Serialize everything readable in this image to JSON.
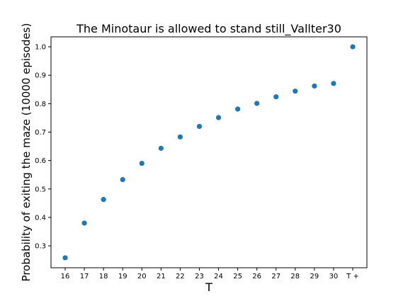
{
  "chart_data": {
    "type": "scatter",
    "title": "The Minotaur is allowed to stand still_Vallter30",
    "xlabel": "T",
    "ylabel": "Probability of exiting the maze (10000 episodes)",
    "categories": [
      "16",
      "17",
      "18",
      "19",
      "20",
      "21",
      "22",
      "23",
      "24",
      "25",
      "26",
      "27",
      "28",
      "29",
      "30",
      "T +"
    ],
    "values": [
      0.258,
      0.38,
      0.463,
      0.533,
      0.59,
      0.643,
      0.683,
      0.72,
      0.751,
      0.781,
      0.801,
      0.824,
      0.844,
      0.862,
      0.871,
      1.0
    ],
    "yticks": [
      0.3,
      0.4,
      0.5,
      0.6,
      0.7,
      0.8,
      0.9,
      1.0
    ],
    "ytick_labels": [
      "0.3",
      "0.4",
      "0.5",
      "0.6",
      "0.7",
      "0.8",
      "0.9",
      "1.0"
    ],
    "ylim": [
      0.223,
      1.035
    ],
    "grid": false,
    "marker_color": "#1f77b4"
  }
}
